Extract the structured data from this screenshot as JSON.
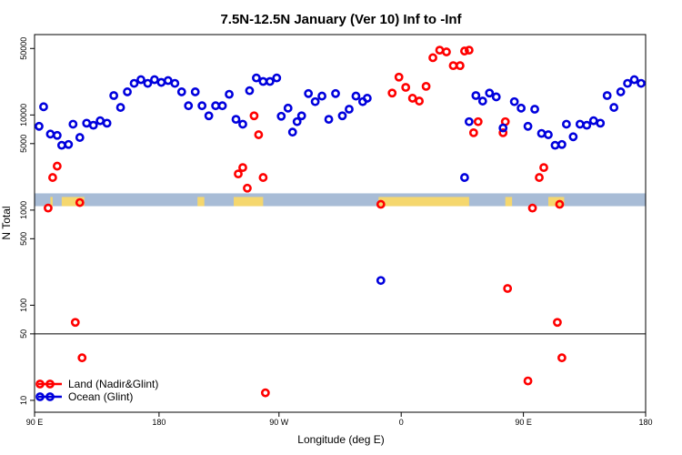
{
  "chart_data": {
    "type": "scatter",
    "title": "7.5N-12.5N January (Ver 10)   Inf to -Inf",
    "xlabel": "Longitude (deg E)",
    "ylabel": "N Total",
    "y_scale": "log",
    "xlim": [
      -90,
      180
    ],
    "ylim": [
      7.5,
      70000
    ],
    "x_ticks": [
      {
        "value": -90,
        "label": "90 E"
      },
      {
        "value": -35,
        "label": "180"
      },
      {
        "value": 18,
        "label": "90 W"
      },
      {
        "value": 72,
        "label": "0"
      },
      {
        "value": 126,
        "label": "90 E"
      },
      {
        "value": 180,
        "label": "180"
      }
    ],
    "y_ticks": [
      {
        "value": 10,
        "label": "10"
      },
      {
        "value": 50,
        "label": "50"
      },
      {
        "value": 100,
        "label": "100"
      },
      {
        "value": 500,
        "label": "500"
      },
      {
        "value": 1000,
        "label": "1000"
      },
      {
        "value": 5000,
        "label": "5000"
      },
      {
        "value": 10000,
        "label": "10000"
      },
      {
        "value": 50000,
        "label": "50000"
      }
    ],
    "reference_line_y": 50,
    "land_band": {
      "y_low": 1100,
      "y_high": 1500,
      "color": "#a8bcd6",
      "land_color": "#f5d76e"
    },
    "legend": {
      "position": "bottom-left"
    },
    "series": [
      {
        "name": "Land (Nadir&Glint)",
        "color": "#ff0000",
        "points": [
          [
            -84,
            1050
          ],
          [
            -82,
            2200
          ],
          [
            -80,
            2900
          ],
          [
            -72,
            66
          ],
          [
            -70,
            1200
          ],
          [
            -69,
            28
          ],
          [
            0,
            2400
          ],
          [
            2,
            2800
          ],
          [
            4,
            1700
          ],
          [
            7,
            9800
          ],
          [
            9,
            6200
          ],
          [
            11,
            2200
          ],
          [
            12,
            12
          ],
          [
            63,
            1150
          ],
          [
            68,
            17000
          ],
          [
            71,
            25000
          ],
          [
            74,
            19500
          ],
          [
            77,
            15000
          ],
          [
            80,
            14000
          ],
          [
            83,
            20000
          ],
          [
            86,
            40000
          ],
          [
            89,
            48000
          ],
          [
            92,
            46000
          ],
          [
            95,
            33000
          ],
          [
            98,
            33000
          ],
          [
            100,
            47000
          ],
          [
            102,
            48000
          ],
          [
            104,
            6500
          ],
          [
            106,
            8500
          ],
          [
            118,
            8500
          ],
          [
            117,
            6500
          ],
          [
            119,
            150
          ],
          [
            128,
            16
          ],
          [
            130,
            1050
          ],
          [
            133,
            2200
          ],
          [
            135,
            2800
          ],
          [
            141,
            66
          ],
          [
            142,
            1150
          ],
          [
            143,
            28
          ]
        ]
      },
      {
        "name": "Ocean (Glint)",
        "color": "#0000dd",
        "points": [
          [
            -88,
            7600
          ],
          [
            -86,
            12200
          ],
          [
            -83,
            6300
          ],
          [
            -80,
            6100
          ],
          [
            -78,
            4800
          ],
          [
            -75,
            4900
          ],
          [
            -73,
            8000
          ],
          [
            -70,
            5800
          ],
          [
            -67,
            8200
          ],
          [
            -64,
            7800
          ],
          [
            -61,
            8700
          ],
          [
            -58,
            8200
          ],
          [
            -55,
            16000
          ],
          [
            -52,
            12000
          ],
          [
            -49,
            17500
          ],
          [
            -46,
            21500
          ],
          [
            -43,
            23500
          ],
          [
            -40,
            21500
          ],
          [
            -37,
            23500
          ],
          [
            -34,
            22000
          ],
          [
            -31,
            23000
          ],
          [
            -28,
            21500
          ],
          [
            -25,
            17500
          ],
          [
            -22,
            12500
          ],
          [
            -19,
            17500
          ],
          [
            -16,
            12500
          ],
          [
            -13,
            9800
          ],
          [
            -10,
            12500
          ],
          [
            -7,
            12500
          ],
          [
            -4,
            16500
          ],
          [
            -1,
            9000
          ],
          [
            2,
            8000
          ],
          [
            5,
            18000
          ],
          [
            8,
            24500
          ],
          [
            11,
            22500
          ],
          [
            14,
            22500
          ],
          [
            17,
            24500
          ],
          [
            19,
            9700
          ],
          [
            22,
            11800
          ],
          [
            24,
            6600
          ],
          [
            26,
            8500
          ],
          [
            28,
            9800
          ],
          [
            31,
            16800
          ],
          [
            34,
            13800
          ],
          [
            37,
            15800
          ],
          [
            40,
            9000
          ],
          [
            43,
            16800
          ],
          [
            46,
            9800
          ],
          [
            49,
            11500
          ],
          [
            52,
            15800
          ],
          [
            55,
            13800
          ],
          [
            57,
            15000
          ],
          [
            63,
            182
          ],
          [
            100,
            2200
          ],
          [
            102,
            8500
          ],
          [
            105,
            16000
          ],
          [
            108,
            14000
          ],
          [
            111,
            17000
          ],
          [
            114,
            15500
          ],
          [
            117,
            7300
          ],
          [
            122,
            13800
          ],
          [
            125,
            11800
          ],
          [
            128,
            7600
          ],
          [
            131,
            11500
          ],
          [
            134,
            6400
          ],
          [
            137,
            6200
          ],
          [
            140,
            4800
          ],
          [
            143,
            4900
          ],
          [
            145,
            8000
          ],
          [
            148,
            5900
          ],
          [
            151,
            8000
          ],
          [
            154,
            7800
          ],
          [
            157,
            8700
          ],
          [
            160,
            8200
          ],
          [
            163,
            16000
          ],
          [
            166,
            12000
          ],
          [
            169,
            17500
          ],
          [
            172,
            21500
          ],
          [
            175,
            23500
          ],
          [
            178,
            21500
          ]
        ]
      }
    ]
  }
}
